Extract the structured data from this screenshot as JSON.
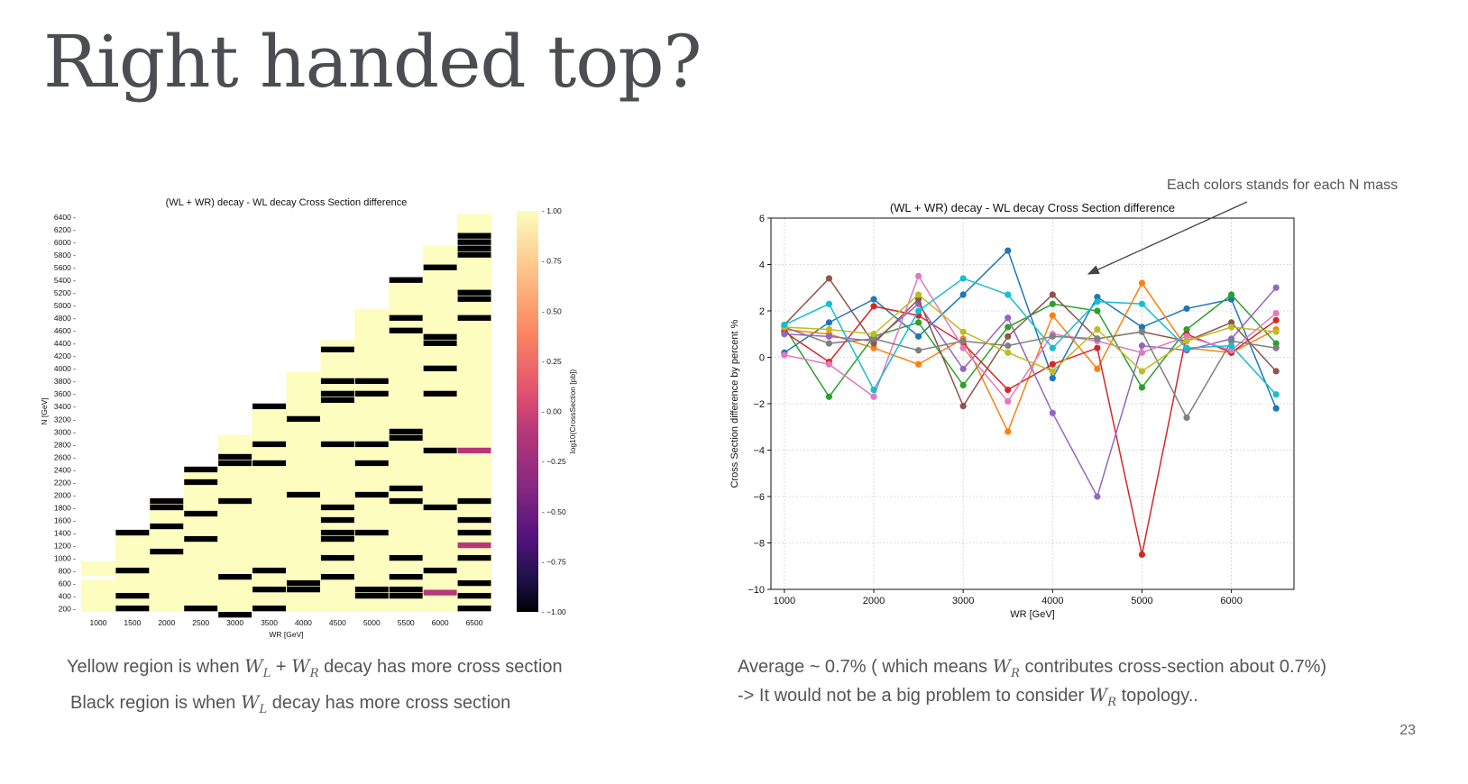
{
  "slide": {
    "title": "Right handed top?",
    "page_number": "23",
    "annotation": "Each colors stands for each N mass",
    "left_caption_1": {
      "pre": "Yellow region is when ",
      "w1": "W",
      "w1_sub": "L",
      "plus": " + ",
      "w2": "W",
      "w2_sub": "R",
      "post": " decay has more cross section"
    },
    "left_caption_2": {
      "pre": "Black region is when ",
      "w1": "W",
      "w1_sub": "L",
      "post": " decay has more cross section"
    },
    "right_caption_1": {
      "pre": "Average ~ 0.7% ( which means ",
      "w": "W",
      "w_sub": "R",
      "post": " contributes cross-section about 0.7%)"
    },
    "right_caption_2": {
      "pre": "-> It would not be a big problem to consider ",
      "w": "W",
      "w_sub": "R",
      "post": " topology.."
    }
  },
  "chart_data": [
    {
      "type": "heatmap",
      "title": "(WL + WR) decay - WL decay Cross Section difference",
      "xlabel": "WR [GeV]",
      "ylabel": "N [GeV]",
      "colorbar_label": "log10(CrossSection [pb])",
      "colorbar_ticks": [
        "1.00",
        "0.75",
        "0.50",
        "0.25",
        "0.00",
        "−0.25",
        "−0.50",
        "−0.75",
        "−1.00"
      ],
      "colors": {
        "yellow": "#fcfdbf",
        "black": "#000004",
        "magenta": "#b73779"
      },
      "x_categories": [
        "1000",
        "1500",
        "2000",
        "2500",
        "3000",
        "3500",
        "4000",
        "4500",
        "5000",
        "5500",
        "6000",
        "6500"
      ],
      "y_categories": [
        "200",
        "400",
        "600",
        "800",
        "1000",
        "1200",
        "1400",
        "1600",
        "1800",
        "2000",
        "2200",
        "2400",
        "2600",
        "2800",
        "3000",
        "3200",
        "3400",
        "3600",
        "3800",
        "4000",
        "4200",
        "4400",
        "4600",
        "4800",
        "5000",
        "5200",
        "5400",
        "5600",
        "5800",
        "6000",
        "6200",
        "6400"
      ],
      "value_legend": {
        "1": "WL + WR decay larger (yellow)",
        "-1": "WL decay larger (black)",
        "0": "equal (magenta)"
      },
      "negative_cells": [
        [
          "1500",
          "400"
        ],
        [
          "1500",
          "200"
        ],
        [
          "1500",
          "800"
        ],
        [
          "1500",
          "1400"
        ],
        [
          "2000",
          "1100"
        ],
        [
          "2000",
          "1500"
        ],
        [
          "2000",
          "1800"
        ],
        [
          "2000",
          "1900"
        ],
        [
          "2500",
          "200"
        ],
        [
          "2500",
          "1300"
        ],
        [
          "2500",
          "1700"
        ],
        [
          "2500",
          "2200"
        ],
        [
          "2500",
          "2400"
        ],
        [
          "3000",
          "100"
        ],
        [
          "3000",
          "700"
        ],
        [
          "3000",
          "1900"
        ],
        [
          "3000",
          "2500"
        ],
        [
          "3000",
          "2600"
        ],
        [
          "3500",
          "200"
        ],
        [
          "3500",
          "500"
        ],
        [
          "3500",
          "800"
        ],
        [
          "3500",
          "2500"
        ],
        [
          "3500",
          "2800"
        ],
        [
          "3500",
          "3400"
        ],
        [
          "4000",
          "500"
        ],
        [
          "4000",
          "600"
        ],
        [
          "4000",
          "2000"
        ],
        [
          "4000",
          "3200"
        ],
        [
          "4500",
          "700"
        ],
        [
          "4500",
          "1000"
        ],
        [
          "4500",
          "1300"
        ],
        [
          "4500",
          "1400"
        ],
        [
          "4500",
          "1600"
        ],
        [
          "4500",
          "1800"
        ],
        [
          "4500",
          "2800"
        ],
        [
          "4500",
          "3500"
        ],
        [
          "4500",
          "3600"
        ],
        [
          "4500",
          "3800"
        ],
        [
          "4500",
          "4300"
        ],
        [
          "5000",
          "400"
        ],
        [
          "5000",
          "500"
        ],
        [
          "5000",
          "1400"
        ],
        [
          "5000",
          "2000"
        ],
        [
          "5000",
          "2500"
        ],
        [
          "5000",
          "2800"
        ],
        [
          "5000",
          "3600"
        ],
        [
          "5000",
          "3800"
        ],
        [
          "5500",
          "400"
        ],
        [
          "5500",
          "500"
        ],
        [
          "5500",
          "700"
        ],
        [
          "5500",
          "1000"
        ],
        [
          "5500",
          "1900"
        ],
        [
          "5500",
          "2100"
        ],
        [
          "5500",
          "2900"
        ],
        [
          "5500",
          "3000"
        ],
        [
          "5500",
          "4600"
        ],
        [
          "5500",
          "4800"
        ],
        [
          "5500",
          "5400"
        ],
        [
          "6000",
          "800"
        ],
        [
          "6000",
          "1800"
        ],
        [
          "6000",
          "2700"
        ],
        [
          "6000",
          "3600"
        ],
        [
          "6000",
          "4000"
        ],
        [
          "6000",
          "4400"
        ],
        [
          "6000",
          "4500"
        ],
        [
          "6000",
          "5600"
        ],
        [
          "6500",
          "200"
        ],
        [
          "6500",
          "400"
        ],
        [
          "6500",
          "600"
        ],
        [
          "6500",
          "1000"
        ],
        [
          "6500",
          "1400"
        ],
        [
          "6500",
          "1600"
        ],
        [
          "6500",
          "1900"
        ],
        [
          "6500",
          "4800"
        ],
        [
          "6500",
          "5100"
        ],
        [
          "6500",
          "5200"
        ],
        [
          "6500",
          "5800"
        ],
        [
          "6500",
          "5900"
        ],
        [
          "6500",
          "6000"
        ],
        [
          "6500",
          "6100"
        ]
      ],
      "zero_cells": [
        [
          "6000",
          "450"
        ],
        [
          "6500",
          "1200"
        ],
        [
          "6500",
          "2700"
        ]
      ],
      "upper_edge": {
        "1000": 900,
        "1500": 1400,
        "2000": 1900,
        "2500": 2400,
        "3000": 2900,
        "3500": 3400,
        "4000": 3900,
        "4500": 4400,
        "5000": 4900,
        "5500": 5400,
        "6000": 5900,
        "6500": 6400
      }
    },
    {
      "type": "line",
      "title": "(WL + WR) decay - WL decay Cross Section difference",
      "xlabel": "WR [GeV]",
      "ylabel": "Cross Section difference by percent %",
      "xlim": [
        850,
        6700
      ],
      "ylim": [
        -10,
        6
      ],
      "xticks": [
        1000,
        2000,
        3000,
        4000,
        5000,
        6000
      ],
      "yticks": [
        -10,
        -8,
        -6,
        -4,
        -2,
        0,
        2,
        4,
        6
      ],
      "grid": true,
      "x": [
        1000,
        1500,
        2000,
        2500,
        3000,
        3500,
        4000,
        4500,
        5000,
        5500,
        6000,
        6500
      ],
      "series": [
        {
          "color": "#1f77b4",
          "values": [
            0.2,
            1.5,
            2.5,
            0.9,
            2.7,
            4.6,
            -0.9,
            2.6,
            1.3,
            2.1,
            2.5,
            -2.2
          ]
        },
        {
          "color": "#ff7f0e",
          "values": [
            1.2,
            1.0,
            0.4,
            -0.3,
            0.8,
            -3.2,
            1.8,
            -0.5,
            3.2,
            0.4,
            0.2,
            1.2
          ]
        },
        {
          "color": "#2ca02c",
          "values": [
            1.3,
            -1.7,
            0.9,
            1.5,
            -1.2,
            1.3,
            2.3,
            2.0,
            -1.3,
            1.2,
            2.7,
            0.6
          ]
        },
        {
          "color": "#d62728",
          "values": [
            1.1,
            -0.2,
            2.2,
            1.8,
            0.6,
            -1.4,
            -0.3,
            0.4,
            -8.5,
            1.0,
            0.2,
            1.6
          ]
        },
        {
          "color": "#9467bd",
          "values": [
            1.0,
            0.9,
            0.7,
            2.3,
            -0.5,
            1.7,
            -2.4,
            -6.0,
            0.5,
            0.3,
            0.8,
            3.0
          ]
        },
        {
          "color": "#8c564b",
          "values": [
            1.4,
            3.4,
            0.6,
            2.5,
            -2.1,
            0.9,
            2.7,
            0.8,
            1.1,
            0.7,
            1.5,
            -0.6
          ]
        },
        {
          "color": "#e377c2",
          "values": [
            0.1,
            -0.3,
            -1.7,
            3.5,
            0.4,
            -1.9,
            1.0,
            0.7,
            0.2,
            0.9,
            0.3,
            1.9
          ]
        },
        {
          "color": "#7f7f7f",
          "values": [
            1.3,
            0.6,
            0.8,
            0.3,
            0.7,
            0.5,
            0.9,
            0.8,
            1.1,
            -2.6,
            0.7,
            0.4
          ]
        },
        {
          "color": "#bcbd22",
          "values": [
            1.3,
            1.2,
            1.0,
            2.7,
            1.1,
            0.2,
            -0.6,
            1.2,
            -0.6,
            0.7,
            1.3,
            1.1
          ]
        },
        {
          "color": "#17becf",
          "values": [
            1.4,
            2.3,
            -1.4,
            2.0,
            3.4,
            2.7,
            0.4,
            2.4,
            2.3,
            0.4,
            0.5,
            -1.6
          ]
        }
      ]
    }
  ]
}
